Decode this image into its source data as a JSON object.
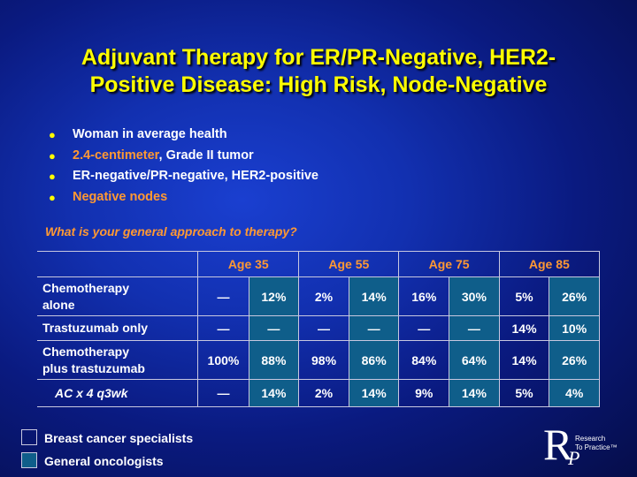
{
  "title_line1": "Adjuvant Therapy for ER/PR-Negative, HER2-",
  "title_line2": "Positive Disease: High Risk, Node-Negative",
  "bullets": [
    {
      "text": "Woman in average health",
      "highlight": false
    },
    {
      "text": "2.4-centimeter",
      "suffix": ", Grade II tumor",
      "highlight": true
    },
    {
      "text": "ER-negative/PR-negative, HER2-positive",
      "highlight": false
    },
    {
      "text": "Negative nodes",
      "highlight": true
    }
  ],
  "bullet_glyph": "●",
  "question": "What is your general approach to therapy?",
  "table": {
    "age_groups": [
      "Age 35",
      "Age 55",
      "Age 75",
      "Age 85"
    ],
    "rows": [
      {
        "label": "Chemotherapy alone",
        "label_line1": "Chemotherapy",
        "label_line2": "alone",
        "values": [
          "—",
          "12%",
          "2%",
          "14%",
          "16%",
          "30%",
          "5%",
          "26%"
        ]
      },
      {
        "label": "Trastuzumab only",
        "values": [
          "—",
          "—",
          "—",
          "—",
          "—",
          "—",
          "14%",
          "10%"
        ]
      },
      {
        "label": "Chemotherapy plus trastuzumab",
        "label_line1": "Chemotherapy",
        "label_line2": "plus trastuzumab",
        "values": [
          "100%",
          "88%",
          "98%",
          "86%",
          "84%",
          "64%",
          "14%",
          "26%"
        ]
      },
      {
        "label": "AC x 4 q3wk",
        "values": [
          "—",
          "14%",
          "2%",
          "14%",
          "9%",
          "14%",
          "5%",
          "4%"
        ]
      }
    ]
  },
  "legend": {
    "specialists": "Breast cancer specialists",
    "oncologists": "General oncologists"
  },
  "logo": {
    "letter_r": "R",
    "letter_p": "P",
    "line1": "Research",
    "line2": "To Practice",
    "tm": "™"
  },
  "colors": {
    "title": "#ffff00",
    "accent": "#ff9933",
    "oncologist_cell": "#0f5e8a"
  }
}
